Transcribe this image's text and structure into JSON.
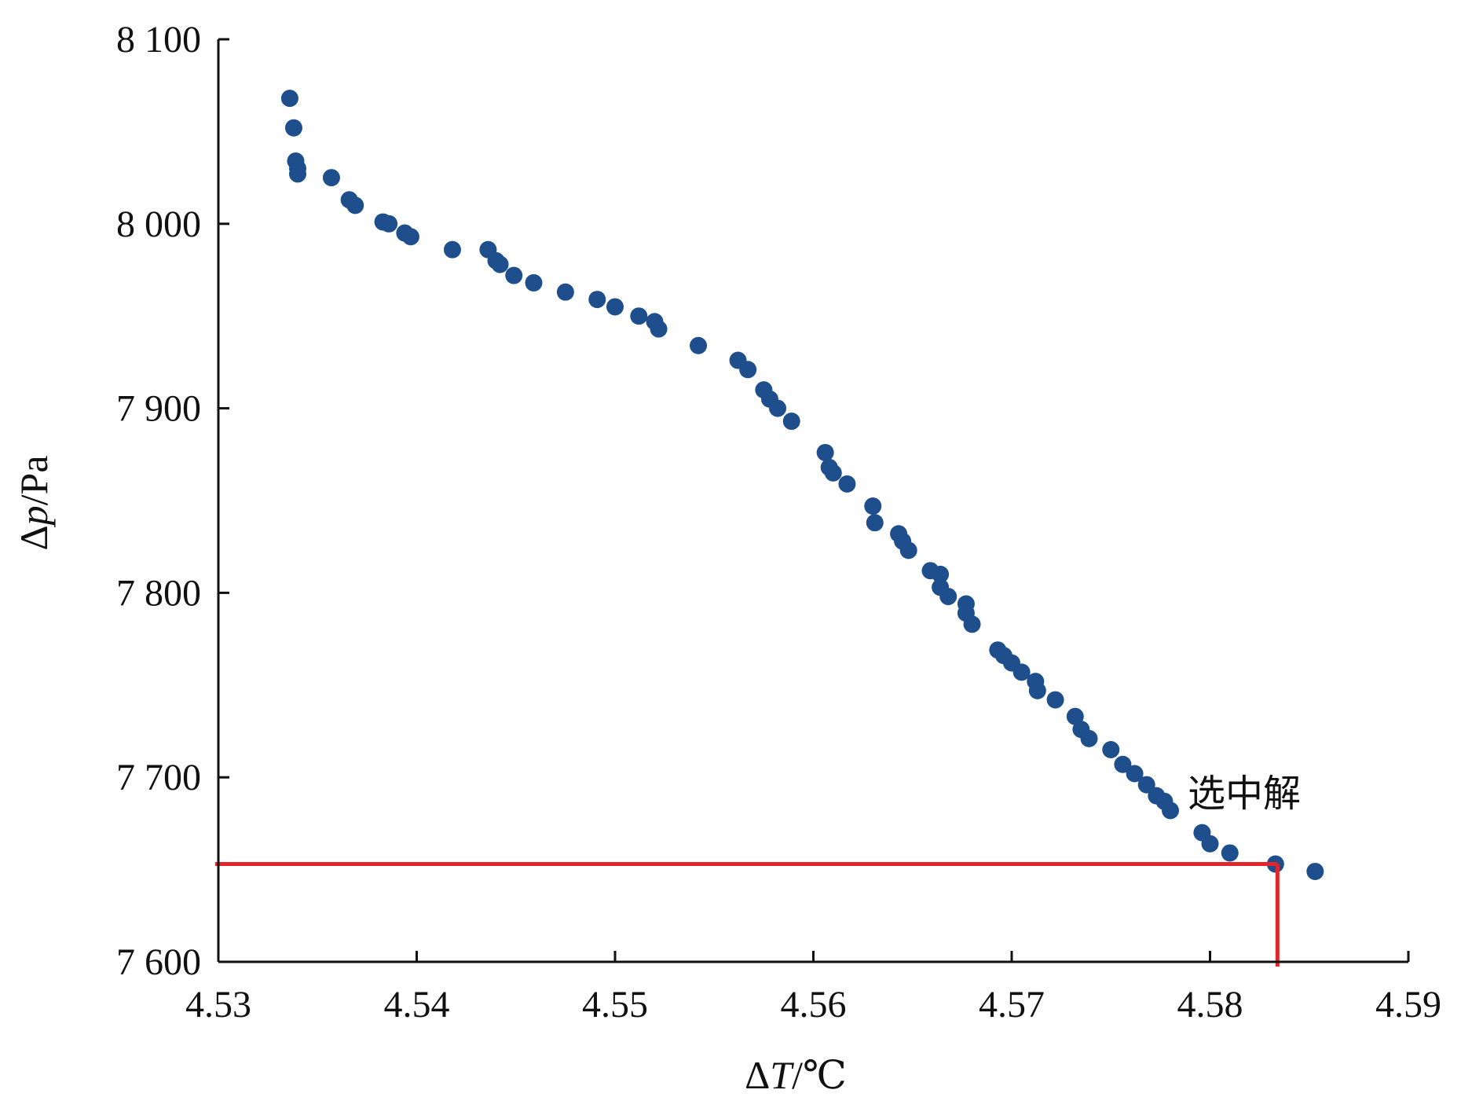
{
  "chart_data": {
    "type": "scatter",
    "title": "",
    "xlabel": {
      "prefix": "Δ",
      "symbol": "T",
      "unit": "/℃"
    },
    "ylabel": {
      "prefix": "Δ",
      "symbol": "p",
      "unit": "/Pa"
    },
    "xlim": [
      4.53,
      4.59
    ],
    "ylim": [
      7600,
      8100
    ],
    "xticks": [
      4.53,
      4.54,
      4.55,
      4.56,
      4.57,
      4.58,
      4.59
    ],
    "yticks": [
      7600,
      7700,
      7800,
      7900,
      8000,
      8100
    ],
    "x_tick_labels": [
      "4.53",
      "4.54",
      "4.55",
      "4.56",
      "4.57",
      "4.58",
      "4.59"
    ],
    "y_tick_labels": [
      "7 600",
      "7 700",
      "7 800",
      "7 900",
      "8 000",
      "8 100"
    ],
    "grid": false,
    "marker_color": "#1f4e8c",
    "highlight_color": "#e0262b",
    "series": [
      {
        "points": [
          [
            4.5336,
            8068
          ],
          [
            4.5338,
            8052
          ],
          [
            4.5339,
            8034
          ],
          [
            4.534,
            8030
          ],
          [
            4.534,
            8027
          ],
          [
            4.5357,
            8025
          ],
          [
            4.5366,
            8013
          ],
          [
            4.5369,
            8010
          ],
          [
            4.5383,
            8001
          ],
          [
            4.5386,
            8000
          ],
          [
            4.5394,
            7995
          ],
          [
            4.5397,
            7993
          ],
          [
            4.5418,
            7986
          ],
          [
            4.5436,
            7986
          ],
          [
            4.544,
            7980
          ],
          [
            4.5442,
            7978
          ],
          [
            4.5449,
            7972
          ],
          [
            4.5459,
            7968
          ],
          [
            4.5475,
            7963
          ],
          [
            4.5491,
            7959
          ],
          [
            4.55,
            7955
          ],
          [
            4.5512,
            7950
          ],
          [
            4.552,
            7947
          ],
          [
            4.5522,
            7943
          ],
          [
            4.5542,
            7934
          ],
          [
            4.5562,
            7926
          ],
          [
            4.5567,
            7921
          ],
          [
            4.5575,
            7910
          ],
          [
            4.5578,
            7905
          ],
          [
            4.5582,
            7900
          ],
          [
            4.5589,
            7893
          ],
          [
            4.5606,
            7876
          ],
          [
            4.5608,
            7868
          ],
          [
            4.561,
            7865
          ],
          [
            4.5617,
            7859
          ],
          [
            4.563,
            7847
          ],
          [
            4.5631,
            7838
          ],
          [
            4.5643,
            7832
          ],
          [
            4.5645,
            7828
          ],
          [
            4.5648,
            7823
          ],
          [
            4.5659,
            7812
          ],
          [
            4.5664,
            7810
          ],
          [
            4.5664,
            7803
          ],
          [
            4.5668,
            7798
          ],
          [
            4.5677,
            7794
          ],
          [
            4.5677,
            7789
          ],
          [
            4.568,
            7783
          ],
          [
            4.5693,
            7769
          ],
          [
            4.5696,
            7766
          ],
          [
            4.57,
            7762
          ],
          [
            4.5705,
            7757
          ],
          [
            4.5712,
            7752
          ],
          [
            4.5713,
            7747
          ],
          [
            4.5722,
            7742
          ],
          [
            4.5732,
            7733
          ],
          [
            4.5735,
            7726
          ],
          [
            4.5739,
            7721
          ],
          [
            4.575,
            7715
          ],
          [
            4.5756,
            7707
          ],
          [
            4.5762,
            7702
          ],
          [
            4.5768,
            7696
          ],
          [
            4.5773,
            7690
          ],
          [
            4.5777,
            7687
          ],
          [
            4.578,
            7682
          ],
          [
            4.5796,
            7670
          ],
          [
            4.58,
            7664
          ],
          [
            4.581,
            7659
          ],
          [
            4.5833,
            7653
          ],
          [
            4.5853,
            7649
          ]
        ]
      }
    ],
    "selected_solution": {
      "x": 4.5834,
      "y": 7653,
      "label": "选中解"
    }
  }
}
